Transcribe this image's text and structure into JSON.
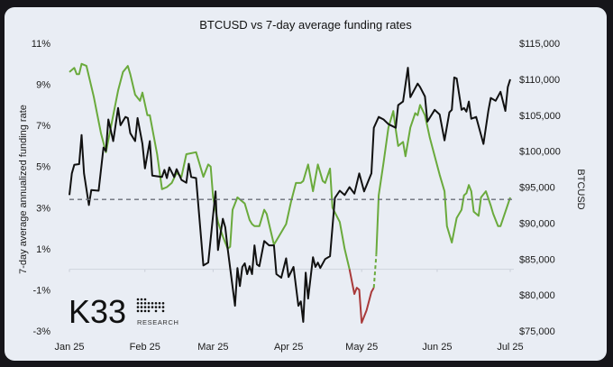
{
  "chart_data": {
    "type": "line",
    "title": "BTCUSD vs 7-day average funding rates",
    "ylabel_left": "7-day average annualized funding rate",
    "ylabel_right": "BTCUSD",
    "xlabel": "",
    "x_ticks": [
      "Jan 25",
      "Feb 25",
      "Mar 25",
      "Apr 25",
      "May 25",
      "Jun 25",
      "Jul 25"
    ],
    "x_tick_dates": [
      "2025-01-01",
      "2025-02-01",
      "2025-03-01",
      "2025-04-01",
      "2025-05-01",
      "2025-06-01",
      "2025-07-01"
    ],
    "xlim": [
      "2025-01-01",
      "2025-07-01"
    ],
    "y_left_ticks": [
      "11%",
      "9%",
      "7%",
      "5%",
      "3%",
      "1%",
      "-1%",
      "-3%"
    ],
    "y_left_lim": [
      -3,
      11
    ],
    "y_right_ticks": [
      "$115,000",
      "$110,000",
      "$105,000",
      "$100,000",
      "$95,000",
      "$90,000",
      "$85,000",
      "$80,000",
      "$75,000"
    ],
    "y_right_lim": [
      75000,
      115000
    ],
    "zero_line": 0,
    "reference_line": {
      "axis": "left",
      "value": 3.4,
      "style": "dashed",
      "color": "#6b6f78"
    },
    "grid": false,
    "legend": "none",
    "colors": {
      "btc": "#111111",
      "funding_positive": "#6aaa3c",
      "funding_negative": "#a93a3a"
    },
    "btc": [
      [
        "2025-01-01",
        93900
      ],
      [
        "2025-01-02",
        96900
      ],
      [
        "2025-01-03",
        98100
      ],
      [
        "2025-01-05",
        98200
      ],
      [
        "2025-01-06",
        102250
      ],
      [
        "2025-01-07",
        96900
      ],
      [
        "2025-01-09",
        92500
      ],
      [
        "2025-01-10",
        94600
      ],
      [
        "2025-01-13",
        94500
      ],
      [
        "2025-01-15",
        100500
      ],
      [
        "2025-01-16",
        100000
      ],
      [
        "2025-01-17",
        104400
      ],
      [
        "2025-01-19",
        101400
      ],
      [
        "2025-01-21",
        106000
      ],
      [
        "2025-01-22",
        103600
      ],
      [
        "2025-01-24",
        104750
      ],
      [
        "2025-01-25",
        104600
      ],
      [
        "2025-01-26",
        102500
      ],
      [
        "2025-01-28",
        101400
      ],
      [
        "2025-01-29",
        104600
      ],
      [
        "2025-01-31",
        101000
      ],
      [
        "2025-02-01",
        97600
      ],
      [
        "2025-02-03",
        101400
      ],
      [
        "2025-02-04",
        96600
      ],
      [
        "2025-02-08",
        96400
      ],
      [
        "2025-02-09",
        97400
      ],
      [
        "2025-02-10",
        96250
      ],
      [
        "2025-02-11",
        97750
      ],
      [
        "2025-02-13",
        96400
      ],
      [
        "2025-02-14",
        97500
      ],
      [
        "2025-02-16",
        96000
      ],
      [
        "2025-02-18",
        95600
      ],
      [
        "2025-02-19",
        98250
      ],
      [
        "2025-02-20",
        96400
      ],
      [
        "2025-02-22",
        96250
      ],
      [
        "2025-02-25",
        84100
      ],
      [
        "2025-02-27",
        84500
      ],
      [
        "2025-03-02",
        94400
      ],
      [
        "2025-03-03",
        86250
      ],
      [
        "2025-03-05",
        90600
      ],
      [
        "2025-03-06",
        89400
      ],
      [
        "2025-03-07",
        86400
      ],
      [
        "2025-03-10",
        78500
      ],
      [
        "2025-03-11",
        83750
      ],
      [
        "2025-03-12",
        81250
      ],
      [
        "2025-03-13",
        83900
      ],
      [
        "2025-03-14",
        84400
      ],
      [
        "2025-03-15",
        82900
      ],
      [
        "2025-03-16",
        84000
      ],
      [
        "2025-03-17",
        82900
      ],
      [
        "2025-03-18",
        86900
      ],
      [
        "2025-03-19",
        84250
      ],
      [
        "2025-03-20",
        84000
      ],
      [
        "2025-03-22",
        87500
      ],
      [
        "2025-03-24",
        86900
      ],
      [
        "2025-03-26",
        86900
      ],
      [
        "2025-03-27",
        82900
      ],
      [
        "2025-03-29",
        82400
      ],
      [
        "2025-03-31",
        85100
      ],
      [
        "2025-04-01",
        82500
      ],
      [
        "2025-04-03",
        83900
      ],
      [
        "2025-04-05",
        78500
      ],
      [
        "2025-04-06",
        79100
      ],
      [
        "2025-04-07",
        76250
      ],
      [
        "2025-04-08",
        83100
      ],
      [
        "2025-04-09",
        79500
      ],
      [
        "2025-04-11",
        85250
      ],
      [
        "2025-04-12",
        83900
      ],
      [
        "2025-04-13",
        84500
      ],
      [
        "2025-04-14",
        83750
      ],
      [
        "2025-04-16",
        85000
      ],
      [
        "2025-04-18",
        85400
      ],
      [
        "2025-04-20",
        93500
      ],
      [
        "2025-04-22",
        94500
      ],
      [
        "2025-04-24",
        93900
      ],
      [
        "2025-04-26",
        95000
      ],
      [
        "2025-04-28",
        94100
      ],
      [
        "2025-04-30",
        96900
      ],
      [
        "2025-05-02",
        94400
      ],
      [
        "2025-05-05",
        96900
      ],
      [
        "2025-05-06",
        103250
      ],
      [
        "2025-05-08",
        104750
      ],
      [
        "2025-05-10",
        104400
      ],
      [
        "2025-05-12",
        103750
      ],
      [
        "2025-05-15",
        103250
      ],
      [
        "2025-05-16",
        106400
      ],
      [
        "2025-05-18",
        106900
      ],
      [
        "2025-05-20",
        111600
      ],
      [
        "2025-05-21",
        107500
      ],
      [
        "2025-05-24",
        109400
      ],
      [
        "2025-05-25",
        108900
      ],
      [
        "2025-05-27",
        107600
      ],
      [
        "2025-05-28",
        104100
      ],
      [
        "2025-05-31",
        105750
      ],
      [
        "2025-06-02",
        105100
      ],
      [
        "2025-06-04",
        101500
      ],
      [
        "2025-06-06",
        105400
      ],
      [
        "2025-06-07",
        105750
      ],
      [
        "2025-06-08",
        110250
      ],
      [
        "2025-06-09",
        110100
      ],
      [
        "2025-06-11",
        105750
      ],
      [
        "2025-06-12",
        106000
      ],
      [
        "2025-06-13",
        105500
      ],
      [
        "2025-06-14",
        106900
      ],
      [
        "2025-06-15",
        104500
      ],
      [
        "2025-06-17",
        104750
      ],
      [
        "2025-06-20",
        101000
      ],
      [
        "2025-06-22",
        105600
      ],
      [
        "2025-06-23",
        107400
      ],
      [
        "2025-06-25",
        107000
      ],
      [
        "2025-06-27",
        108250
      ],
      [
        "2025-06-29",
        105600
      ],
      [
        "2025-06-30",
        108900
      ],
      [
        "2025-07-01",
        110000
      ]
    ],
    "funding_segments": [
      {
        "color": "#6aaa3c",
        "dashed": false,
        "points": [
          [
            "2025-01-01",
            9.6
          ],
          [
            "2025-01-03",
            9.8
          ],
          [
            "2025-01-04",
            9.5
          ],
          [
            "2025-01-05",
            9.5
          ],
          [
            "2025-01-06",
            10.0
          ],
          [
            "2025-01-08",
            9.9
          ],
          [
            "2025-01-11",
            8.4
          ],
          [
            "2025-01-14",
            6.6
          ],
          [
            "2025-01-16",
            5.7
          ],
          [
            "2025-01-19",
            7.5
          ],
          [
            "2025-01-21",
            8.7
          ],
          [
            "2025-01-23",
            9.6
          ],
          [
            "2025-01-25",
            9.9
          ],
          [
            "2025-01-26",
            9.5
          ],
          [
            "2025-01-28",
            8.5
          ],
          [
            "2025-01-30",
            8.2
          ],
          [
            "2025-01-31",
            8.6
          ],
          [
            "2025-02-02",
            7.5
          ],
          [
            "2025-02-03",
            7.5
          ],
          [
            "2025-02-06",
            5.6
          ],
          [
            "2025-02-08",
            3.9
          ],
          [
            "2025-02-10",
            4.0
          ],
          [
            "2025-02-12",
            4.2
          ],
          [
            "2025-02-14",
            4.7
          ],
          [
            "2025-02-16",
            4.5
          ],
          [
            "2025-02-18",
            5.6
          ],
          [
            "2025-02-22",
            5.7
          ],
          [
            "2025-02-23",
            5.3
          ],
          [
            "2025-02-25",
            4.5
          ],
          [
            "2025-02-27",
            5.1
          ],
          [
            "2025-02-28",
            5.0
          ],
          [
            "2025-03-01",
            3.5
          ],
          [
            "2025-03-03",
            2.3
          ],
          [
            "2025-03-05",
            1.6
          ],
          [
            "2025-03-07",
            1.0
          ],
          [
            "2025-03-08",
            1.1
          ],
          [
            "2025-03-09",
            2.9
          ],
          [
            "2025-03-11",
            3.5
          ],
          [
            "2025-03-14",
            3.2
          ],
          [
            "2025-03-16",
            2.4
          ],
          [
            "2025-03-17",
            2.2
          ],
          [
            "2025-03-18",
            2.1
          ],
          [
            "2025-03-20",
            2.1
          ],
          [
            "2025-03-22",
            2.9
          ],
          [
            "2025-03-23",
            2.7
          ],
          [
            "2025-03-26",
            1.2
          ],
          [
            "2025-03-28",
            1.6
          ],
          [
            "2025-03-31",
            2.2
          ],
          [
            "2025-04-02",
            3.3
          ],
          [
            "2025-04-04",
            4.2
          ],
          [
            "2025-04-06",
            4.2
          ],
          [
            "2025-04-07",
            4.3
          ],
          [
            "2025-04-09",
            5.1
          ],
          [
            "2025-04-11",
            3.8
          ],
          [
            "2025-04-13",
            5.1
          ],
          [
            "2025-04-15",
            4.3
          ],
          [
            "2025-04-16",
            4.2
          ],
          [
            "2025-04-18",
            4.9
          ],
          [
            "2025-04-19",
            3.0
          ],
          [
            "2025-04-22",
            2.3
          ],
          [
            "2025-04-24",
            1.0
          ],
          [
            "2025-04-26",
            0.0
          ]
        ]
      },
      {
        "color": "#a93a3a",
        "dashed": false,
        "points": [
          [
            "2025-04-26",
            0.0
          ],
          [
            "2025-04-28",
            -1.2
          ],
          [
            "2025-04-29",
            -0.9
          ],
          [
            "2025-04-30",
            -1.0
          ],
          [
            "2025-05-01",
            -2.6
          ],
          [
            "2025-05-03",
            -2.0
          ],
          [
            "2025-05-05",
            -1.1
          ],
          [
            "2025-05-06",
            -0.9
          ]
        ]
      },
      {
        "color": "#6aaa3c",
        "dashed": true,
        "points": [
          [
            "2025-05-06",
            -0.9
          ],
          [
            "2025-05-07",
            0.7
          ]
        ]
      },
      {
        "color": "#6aaa3c",
        "dashed": false,
        "points": [
          [
            "2025-05-07",
            0.7
          ],
          [
            "2025-05-08",
            3.6
          ],
          [
            "2025-05-10",
            5.2
          ],
          [
            "2025-05-12",
            6.9
          ],
          [
            "2025-05-14",
            7.7
          ],
          [
            "2025-05-15",
            6.8
          ],
          [
            "2025-05-16",
            6.0
          ],
          [
            "2025-05-18",
            6.2
          ],
          [
            "2025-05-19",
            5.5
          ],
          [
            "2025-05-21",
            6.9
          ],
          [
            "2025-05-23",
            7.6
          ],
          [
            "2025-05-24",
            7.5
          ],
          [
            "2025-05-25",
            8.0
          ],
          [
            "2025-05-27",
            7.5
          ],
          [
            "2025-05-29",
            6.4
          ],
          [
            "2025-06-02",
            4.6
          ],
          [
            "2025-06-04",
            3.8
          ],
          [
            "2025-06-05",
            2.1
          ],
          [
            "2025-06-07",
            1.3
          ],
          [
            "2025-06-09",
            2.5
          ],
          [
            "2025-06-11",
            2.9
          ],
          [
            "2025-06-12",
            3.6
          ],
          [
            "2025-06-13",
            3.7
          ],
          [
            "2025-06-14",
            4.1
          ],
          [
            "2025-06-15",
            3.8
          ],
          [
            "2025-06-16",
            2.8
          ],
          [
            "2025-06-18",
            2.6
          ],
          [
            "2025-06-19",
            3.5
          ],
          [
            "2025-06-21",
            3.8
          ],
          [
            "2025-06-23",
            3.1
          ],
          [
            "2025-06-24",
            2.7
          ],
          [
            "2025-06-26",
            2.1
          ],
          [
            "2025-06-27",
            2.1
          ],
          [
            "2025-07-01",
            3.5
          ]
        ]
      }
    ]
  },
  "logo": {
    "mark": "K33",
    "sub": "RESEARCH"
  }
}
